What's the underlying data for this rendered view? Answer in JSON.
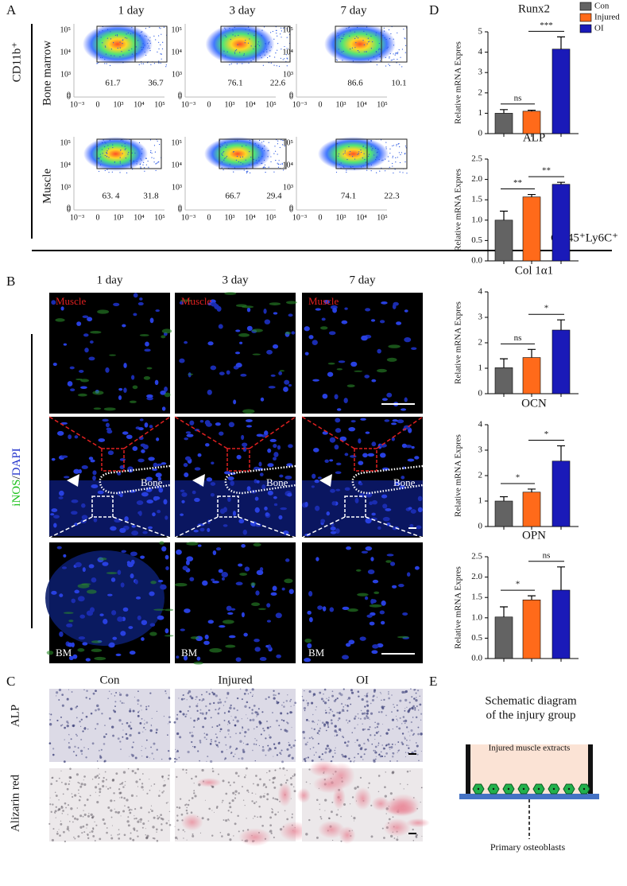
{
  "panel_a": {
    "label": "A",
    "columns": [
      "1 day",
      "3 day",
      "7 day"
    ],
    "y_axis_label": "CD11b⁺",
    "x_axis_label": "CD45⁺Ly6C⁺",
    "rows": [
      {
        "label": "Bone marrow",
        "quadrants": [
          [
            "61.7",
            "36.7"
          ],
          [
            "76.1",
            "22.6"
          ],
          [
            "86.6",
            "10.1"
          ]
        ]
      },
      {
        "label": "Muscle",
        "quadrants": [
          [
            "63. 4",
            "31.8"
          ],
          [
            "66.7",
            "29.4"
          ],
          [
            "74.1",
            "22.3"
          ]
        ]
      }
    ],
    "y_ticks": [
      "10⁵",
      "10⁴",
      "10³",
      "0"
    ],
    "x_ticks": [
      "10⁻³",
      "0",
      "10³",
      "10⁴",
      "10⁵"
    ]
  },
  "panel_b": {
    "label": "B",
    "columns": [
      "1 day",
      "3 day",
      "7 day"
    ],
    "stain": {
      "green": "iNOS",
      "sep": "/",
      "blue": "DAPI"
    },
    "muscle": "Muscle",
    "bone": "Bone",
    "bm": "BM"
  },
  "panel_c": {
    "label": "C",
    "columns": [
      "Con",
      "Injured",
      "OI"
    ],
    "rows": [
      "ALP",
      "Alizarin red"
    ]
  },
  "panel_d": {
    "label": "D",
    "legend": [
      {
        "name": "Con",
        "color": "#636363"
      },
      {
        "name": "Injured",
        "color": "#ff6a1a"
      },
      {
        "name": "OI",
        "color": "#1a1ab8"
      }
    ]
  },
  "chart_data": [
    {
      "type": "bar",
      "title": "Runx2",
      "y_label": "Relative mRNA Expres",
      "ylim": [
        0,
        5
      ],
      "yticks": [
        0,
        1,
        2,
        3,
        4,
        5
      ],
      "values": [
        1.0,
        1.1,
        4.15
      ],
      "errors": [
        0.18,
        0.05,
        0.6
      ],
      "annotations": [
        "ns",
        "***"
      ]
    },
    {
      "type": "bar",
      "title": "ALP",
      "y_label": "Relative mRNA Expres",
      "ylim": [
        0,
        2.5
      ],
      "yticks": [
        {
          "value": 0,
          "label": "0.0"
        },
        0.5,
        {
          "value": 1,
          "label": "1.0"
        },
        1.5,
        {
          "value": 2,
          "label": "2.0"
        },
        2.5
      ],
      "values": [
        1.0,
        1.57,
        1.88
      ],
      "errors": [
        0.22,
        0.06,
        0.05
      ],
      "annotations": [
        "**",
        "**"
      ]
    },
    {
      "type": "bar",
      "title": "Col 1α1",
      "y_label": "Relative mRNA Expres",
      "ylim": [
        0,
        4
      ],
      "yticks": [
        0,
        1,
        2,
        3,
        4
      ],
      "values": [
        1.02,
        1.42,
        2.5
      ],
      "errors": [
        0.35,
        0.32,
        0.4
      ],
      "annotations": [
        "ns",
        "*"
      ]
    },
    {
      "type": "bar",
      "title": "OCN",
      "y_label": "Relative mRNA Expres",
      "ylim": [
        0,
        4
      ],
      "yticks": [
        0,
        1,
        2,
        3,
        4
      ],
      "values": [
        1.0,
        1.35,
        2.57
      ],
      "errors": [
        0.17,
        0.12,
        0.6
      ],
      "annotations": [
        "*",
        "*"
      ]
    },
    {
      "type": "bar",
      "title": "OPN",
      "y_label": "Relative mRNA Expres",
      "ylim": [
        0,
        2.5
      ],
      "yticks": [
        {
          "value": 0,
          "label": "0.0"
        },
        0.5,
        {
          "value": 1,
          "label": "1.0"
        },
        1.5,
        {
          "value": 2,
          "label": "2.0"
        },
        2.5
      ],
      "values": [
        1.02,
        1.44,
        1.68
      ],
      "errors": [
        0.25,
        0.1,
        0.57
      ],
      "annotations": [
        "*",
        "ns"
      ]
    }
  ],
  "panel_e": {
    "label": "E",
    "title": [
      "Schematic diagram",
      "of the injury group"
    ],
    "box_label": "Injured muscle extracts",
    "cell_label": "Primary osteoblasts"
  }
}
